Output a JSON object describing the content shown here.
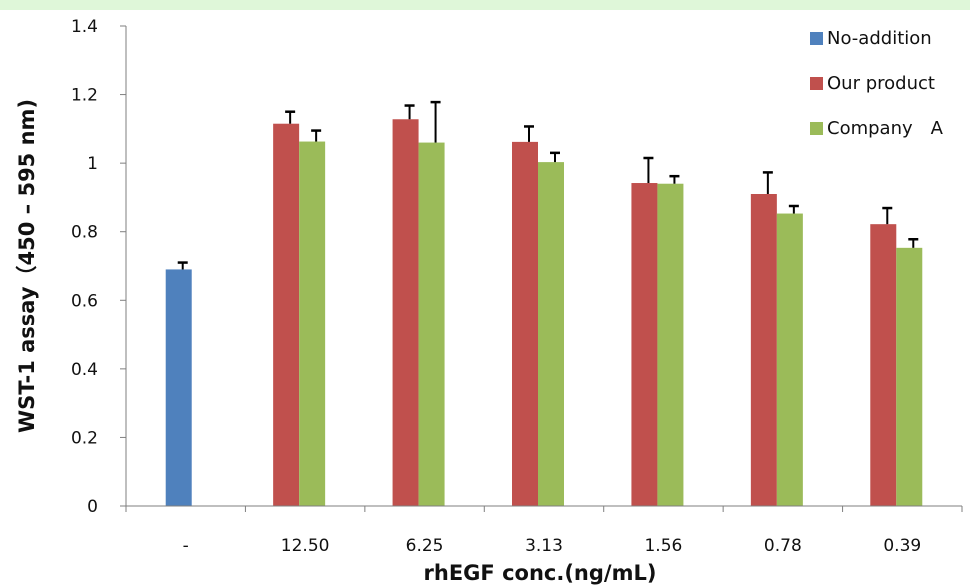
{
  "colors": {
    "top_band": "#dff7d9",
    "no_addition": "#4f81bd",
    "our_product": "#c0504d",
    "company_a": "#9bbb59",
    "error_bar": "#000000"
  },
  "chart_data": {
    "type": "bar",
    "title": "",
    "xlabel": "rhEGF conc.(ng/mL)",
    "ylabel": "WST-1 assay（450 – 595 nm)",
    "categories": [
      "-",
      "12.50",
      "6.25",
      "3.13",
      "1.56",
      "0.78",
      "0.39"
    ],
    "ylim": [
      0,
      1.4
    ],
    "yticks": [
      0,
      0.2,
      0.4,
      0.6,
      0.8,
      1,
      1.2,
      1.4
    ],
    "ytick_labels": [
      "0",
      "0.2",
      "0.4",
      "0.6",
      "0.8",
      "1",
      "1.2",
      "1.4"
    ],
    "grid": false,
    "legend_position": "top-right",
    "series": [
      {
        "name": "No-addition",
        "color": "#4f81bd",
        "values": [
          0.69,
          null,
          null,
          null,
          null,
          null,
          null
        ],
        "errors": [
          0.02,
          null,
          null,
          null,
          null,
          null,
          null
        ]
      },
      {
        "name": "Our product",
        "color": "#c0504d",
        "values": [
          null,
          1.115,
          1.128,
          1.062,
          0.942,
          0.91,
          0.822
        ],
        "errors": [
          null,
          0.035,
          0.04,
          0.045,
          0.073,
          0.063,
          0.047
        ]
      },
      {
        "name": "Company　A",
        "color": "#9bbb59",
        "values": [
          null,
          1.063,
          1.06,
          1.003,
          0.94,
          0.853,
          0.753
        ],
        "errors": [
          null,
          0.032,
          0.118,
          0.027,
          0.022,
          0.022,
          0.025
        ]
      }
    ]
  }
}
